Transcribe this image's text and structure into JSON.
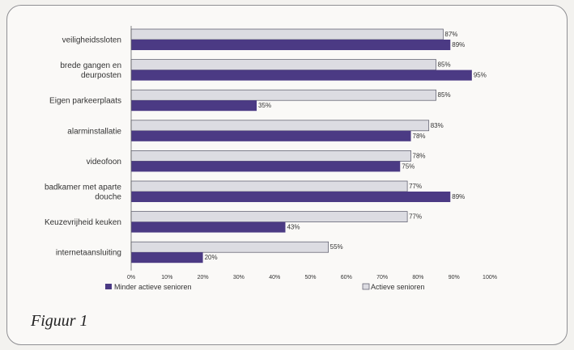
{
  "figure_caption": "Figuur 1",
  "colors": {
    "minder": "#4b3a84",
    "actieve": "#dcdce2",
    "outline": "#555566"
  },
  "chart_data": {
    "type": "bar",
    "orientation": "horizontal",
    "categories": [
      "veiligheidssloten",
      "brede gangen en deurposten",
      "Eigen parkeerplaats",
      "alarminstallatie",
      "videofoon",
      "badkamer met aparte douche",
      "Keuzevrijheid keuken",
      "internetaansluiting"
    ],
    "category_lines": [
      [
        "veiligheidssloten"
      ],
      [
        "brede gangen en",
        "deurposten"
      ],
      [
        "Eigen parkeerplaats"
      ],
      [
        "alarminstallatie"
      ],
      [
        "videofoon"
      ],
      [
        "badkamer met aparte",
        "douche"
      ],
      [
        "Keuzevrijheid keuken"
      ],
      [
        "internetaansluiting"
      ]
    ],
    "series": [
      {
        "name": "Actieve senioren",
        "values": [
          87,
          85,
          85,
          83,
          78,
          77,
          77,
          55
        ]
      },
      {
        "name": "Minder actieve senioren",
        "values": [
          89,
          95,
          35,
          78,
          75,
          89,
          43,
          20
        ]
      }
    ],
    "value_labels": {
      "Actieve senioren": [
        "87%",
        "85%",
        "85%",
        "83%",
        "78%",
        "77%",
        "77%",
        "55%"
      ],
      "Minder actieve senioren": [
        "89%",
        "95%",
        "35%",
        "78%",
        "75%",
        "89%",
        "43%",
        "20%"
      ]
    },
    "x_ticks": [
      "0%",
      "10%",
      "20%",
      "30%",
      "40%",
      "50%",
      "60%",
      "70%",
      "80%",
      "90%",
      "100%"
    ],
    "xlim": [
      0,
      100
    ],
    "legend_position": "bottom",
    "grid": false
  }
}
